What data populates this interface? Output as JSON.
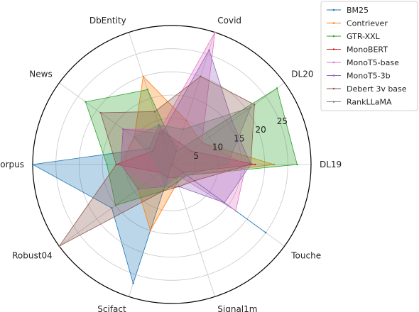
{
  "chart_data": {
    "type": "radar",
    "categories": [
      "DL19",
      "DL20",
      "Covid",
      "DbEntity",
      "News",
      "NfCorpus",
      "Robust04",
      "Scifact",
      "Signal1m",
      "Touche"
    ],
    "rlim": [
      0,
      30
    ],
    "rticks": [
      5,
      10,
      15,
      20,
      25
    ],
    "rtick_labels": [
      "5",
      "10",
      "15",
      "20",
      "25"
    ],
    "grid": true,
    "legend_position": "top-right",
    "series": [
      {
        "name": "BM25",
        "color": "#1f77b4",
        "values": [
          0,
          0,
          4,
          9,
          6,
          30,
          16,
          27,
          0,
          25
        ]
      },
      {
        "name": "Contriever",
        "color": "#ff7f0e",
        "values": [
          22,
          8,
          10,
          20,
          10,
          11,
          9,
          15,
          4,
          4
        ]
      },
      {
        "name": "GTR-XXL",
        "color": "#2ca02c",
        "values": [
          27,
          28,
          3,
          17,
          23,
          14,
          15,
          6,
          4,
          4
        ]
      },
      {
        "name": "MonoBERT",
        "color": "#d62728",
        "values": [
          18,
          5,
          5,
          8,
          5,
          12,
          3,
          3,
          3,
          3
        ]
      },
      {
        "name": "MonoT5-base",
        "color": "#e377c2",
        "values": [
          16,
          8,
          30,
          8,
          13,
          11,
          7,
          5,
          2,
          17
        ]
      },
      {
        "name": "MonoT5-3b",
        "color": "#9467bd",
        "values": [
          17,
          16,
          26,
          7,
          13,
          11,
          9,
          5,
          5,
          14
        ]
      },
      {
        "name": "Debert 3v base",
        "color": "#8c564b",
        "values": [
          17,
          22,
          20,
          12,
          19,
          12,
          30,
          6,
          5,
          6
        ]
      },
      {
        "name": "RankLLaMA",
        "color": "#7f7f7f",
        "values": [
          12,
          21,
          8,
          9,
          10,
          3,
          3,
          5,
          3,
          4
        ]
      }
    ]
  }
}
